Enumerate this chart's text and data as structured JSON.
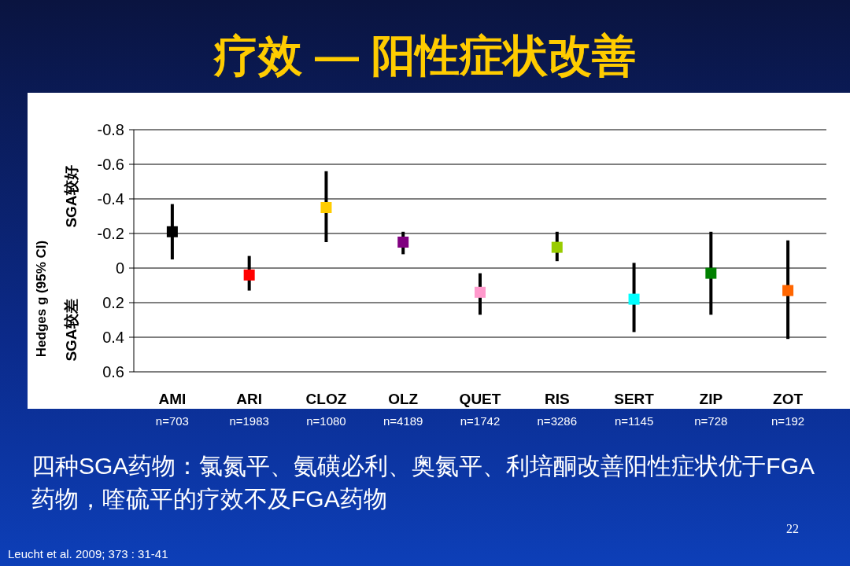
{
  "chart_data": {
    "type": "scatter",
    "title": "疗效 — 阳性症状改善",
    "ylabel": "Hedges g (95% CI)",
    "categories": [
      "AMI",
      "ARI",
      "CLOZ",
      "OLZ",
      "QUET",
      "RIS",
      "SERT",
      "ZIP",
      "ZOT"
    ],
    "values": [
      -0.21,
      0.04,
      -0.35,
      -0.15,
      0.14,
      -0.12,
      0.18,
      0.03,
      0.13
    ],
    "errors": [
      [
        -0.37,
        -0.05
      ],
      [
        -0.07,
        0.13
      ],
      [
        -0.56,
        -0.15
      ],
      [
        -0.21,
        -0.08
      ],
      [
        0.03,
        0.27
      ],
      [
        -0.21,
        -0.04
      ],
      [
        -0.03,
        0.37
      ],
      [
        -0.21,
        0.27
      ],
      [
        -0.16,
        0.41
      ]
    ],
    "colors": [
      "#000000",
      "#ff0000",
      "#ffcc00",
      "#800080",
      "#ff99cc",
      "#99cc00",
      "#00ffff",
      "#008000",
      "#ff6600"
    ],
    "ylim": [
      0.6,
      -0.8
    ],
    "yticks": [
      -0.8,
      -0.6,
      -0.4,
      -0.2,
      0,
      0.2,
      0.4,
      0.6
    ],
    "grid": "y",
    "marker": "square",
    "annotations": [
      "SGA较好",
      "SGA较差",
      "n=703",
      "n=1983",
      "n=1080",
      "n=4189",
      "n=1742",
      "n=3286",
      "n=1145",
      "n=728",
      "n=192",
      "四种SGA药物：氯氮平、氨磺必利、奥氮平、利培酮改善阳性症状优于FGA药物，喹硫平的疗效不及FGA药物",
      "22",
      "Leucht et al. 2009; 373 : 31-41"
    ]
  }
}
